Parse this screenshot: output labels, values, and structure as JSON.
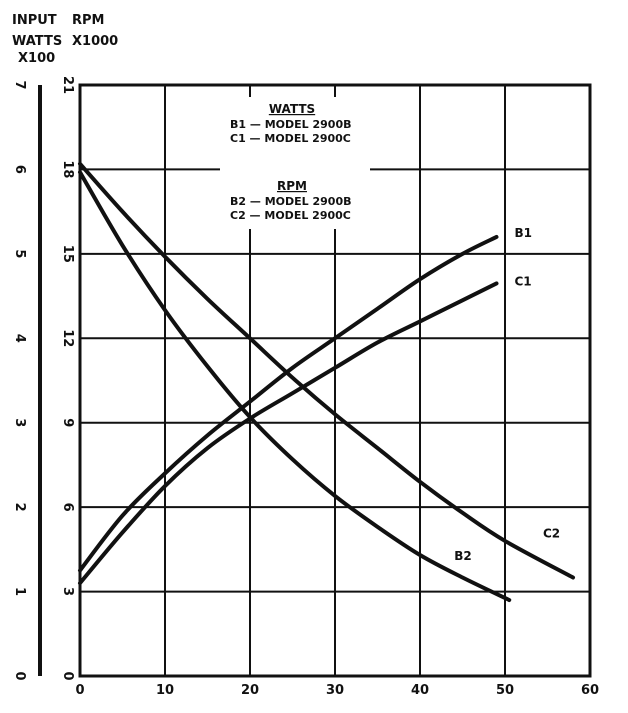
{
  "chart_data": {
    "type": "line",
    "header": {
      "watts_title": [
        "INPUT",
        "WATTS",
        "X100"
      ],
      "rpm_title": [
        "RPM",
        "X1000"
      ]
    },
    "x_ticks": [
      "0",
      "10",
      "20",
      "30",
      "40",
      "50",
      "60"
    ],
    "xlim": [
      0,
      60
    ],
    "y_watts_ticks": [
      "0",
      "1",
      "2",
      "3",
      "4",
      "5",
      "6",
      "7"
    ],
    "y_rpm_ticks": [
      "0",
      "3",
      "6",
      "9",
      "12",
      "15",
      "18",
      "21"
    ],
    "ylim_watts": [
      0,
      7
    ],
    "ylim_rpm": [
      0,
      21
    ],
    "grid": true,
    "legend": {
      "watts_heading": "WATTS",
      "watts_entries": [
        "B1 — MODEL 2900B",
        "C1 — MODEL 2900C"
      ],
      "rpm_heading": "RPM",
      "rpm_entries": [
        "B2 — MODEL 2900B",
        "C2 — MODEL 2900C"
      ]
    },
    "series": [
      {
        "name": "B1",
        "axis": "watts",
        "x": [
          0,
          5,
          10,
          15,
          20,
          25,
          30,
          35,
          40,
          45,
          49
        ],
        "values": [
          1.25,
          1.9,
          2.4,
          2.85,
          3.25,
          3.65,
          4.0,
          4.35,
          4.7,
          5.0,
          5.2
        ]
      },
      {
        "name": "C1",
        "axis": "watts",
        "x": [
          0,
          5,
          10,
          15,
          20,
          25,
          30,
          35,
          40,
          45,
          49
        ],
        "values": [
          1.1,
          1.7,
          2.25,
          2.7,
          3.05,
          3.35,
          3.65,
          3.95,
          4.2,
          4.45,
          4.65
        ]
      },
      {
        "name": "B2",
        "axis": "rpm",
        "x": [
          0,
          5,
          10,
          15,
          20,
          25,
          30,
          35,
          40,
          45,
          50.5
        ],
        "values": [
          17.9,
          15.3,
          13.0,
          11.0,
          9.2,
          7.7,
          6.4,
          5.3,
          4.3,
          3.5,
          2.7
        ]
      },
      {
        "name": "C2",
        "axis": "rpm",
        "x": [
          0,
          5,
          10,
          15,
          20,
          25,
          30,
          35,
          40,
          45,
          50,
          58
        ],
        "values": [
          18.2,
          16.5,
          14.9,
          13.4,
          12.0,
          10.6,
          9.3,
          8.1,
          6.9,
          5.8,
          4.8,
          3.5
        ]
      }
    ]
  }
}
